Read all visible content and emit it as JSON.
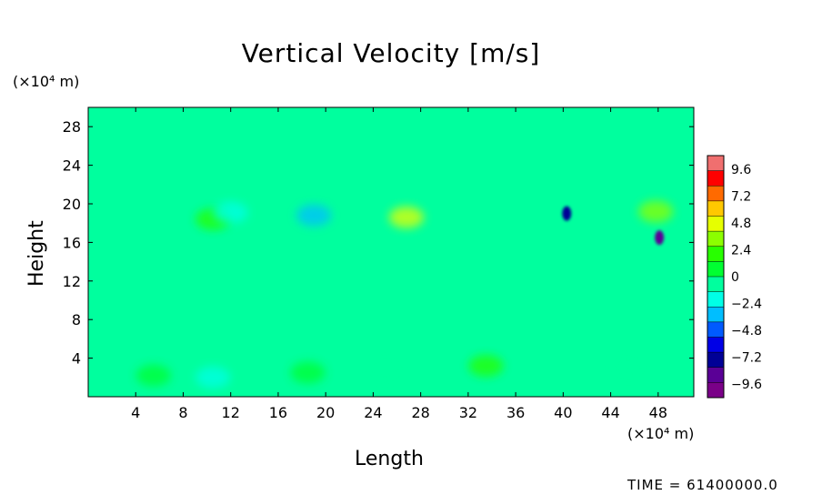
{
  "chart_data": {
    "type": "heatmap",
    "title": "Vertical Velocity [m/s]",
    "xlabel": "Length",
    "ylabel": "Height",
    "x_unit": "(×10⁴ m)",
    "y_unit": "(×10⁴ m)",
    "xlim": [
      0,
      51
    ],
    "ylim": [
      0,
      30
    ],
    "x_ticks": [
      4,
      8,
      12,
      16,
      20,
      24,
      28,
      32,
      36,
      40,
      44,
      48
    ],
    "y_ticks": [
      4,
      8,
      12,
      16,
      20,
      24,
      28
    ],
    "colorbar": {
      "ticks": [
        9.6,
        7.2,
        4.8,
        2.4,
        0,
        -2.4,
        -4.8,
        -7.2,
        -9.6
      ],
      "range": [
        -10.8,
        10.8
      ],
      "colors": [
        "#f06f6f",
        "#ff0000",
        "#ff6a00",
        "#ffc800",
        "#e6ff00",
        "#8cff00",
        "#28ff00",
        "#00ff32",
        "#00ff9e",
        "#00ffe6",
        "#00beff",
        "#005aff",
        "#0000e6",
        "#000096",
        "#5a0096",
        "#7a0088"
      ]
    },
    "background_value": 0,
    "features": [
      {
        "x": 40.3,
        "y": 19.0,
        "value": -8.0
      },
      {
        "x": 48.1,
        "y": 16.5,
        "value": -8.5
      },
      {
        "x": 47.8,
        "y": 19.2,
        "value": 4.0
      },
      {
        "x": 26.8,
        "y": 18.6,
        "value": 4.2
      },
      {
        "x": 19.0,
        "y": 18.8,
        "value": -3.0
      },
      {
        "x": 10.5,
        "y": 18.4,
        "value": 1.5
      },
      {
        "x": 12.0,
        "y": 19.1,
        "value": -2.5
      },
      {
        "x": 33.5,
        "y": 3.2,
        "value": 1.8
      },
      {
        "x": 5.5,
        "y": 2.2,
        "value": 1.2
      },
      {
        "x": 10.5,
        "y": 2.0,
        "value": -1.8
      },
      {
        "x": 18.5,
        "y": 2.5,
        "value": 1.0
      },
      {
        "x": 25.0,
        "y": 2.8,
        "value": -1.2
      },
      {
        "x": 45.5,
        "y": 3.0,
        "value": -1.0
      }
    ]
  },
  "footer": {
    "time_text": "TIME = 61400000.0"
  }
}
